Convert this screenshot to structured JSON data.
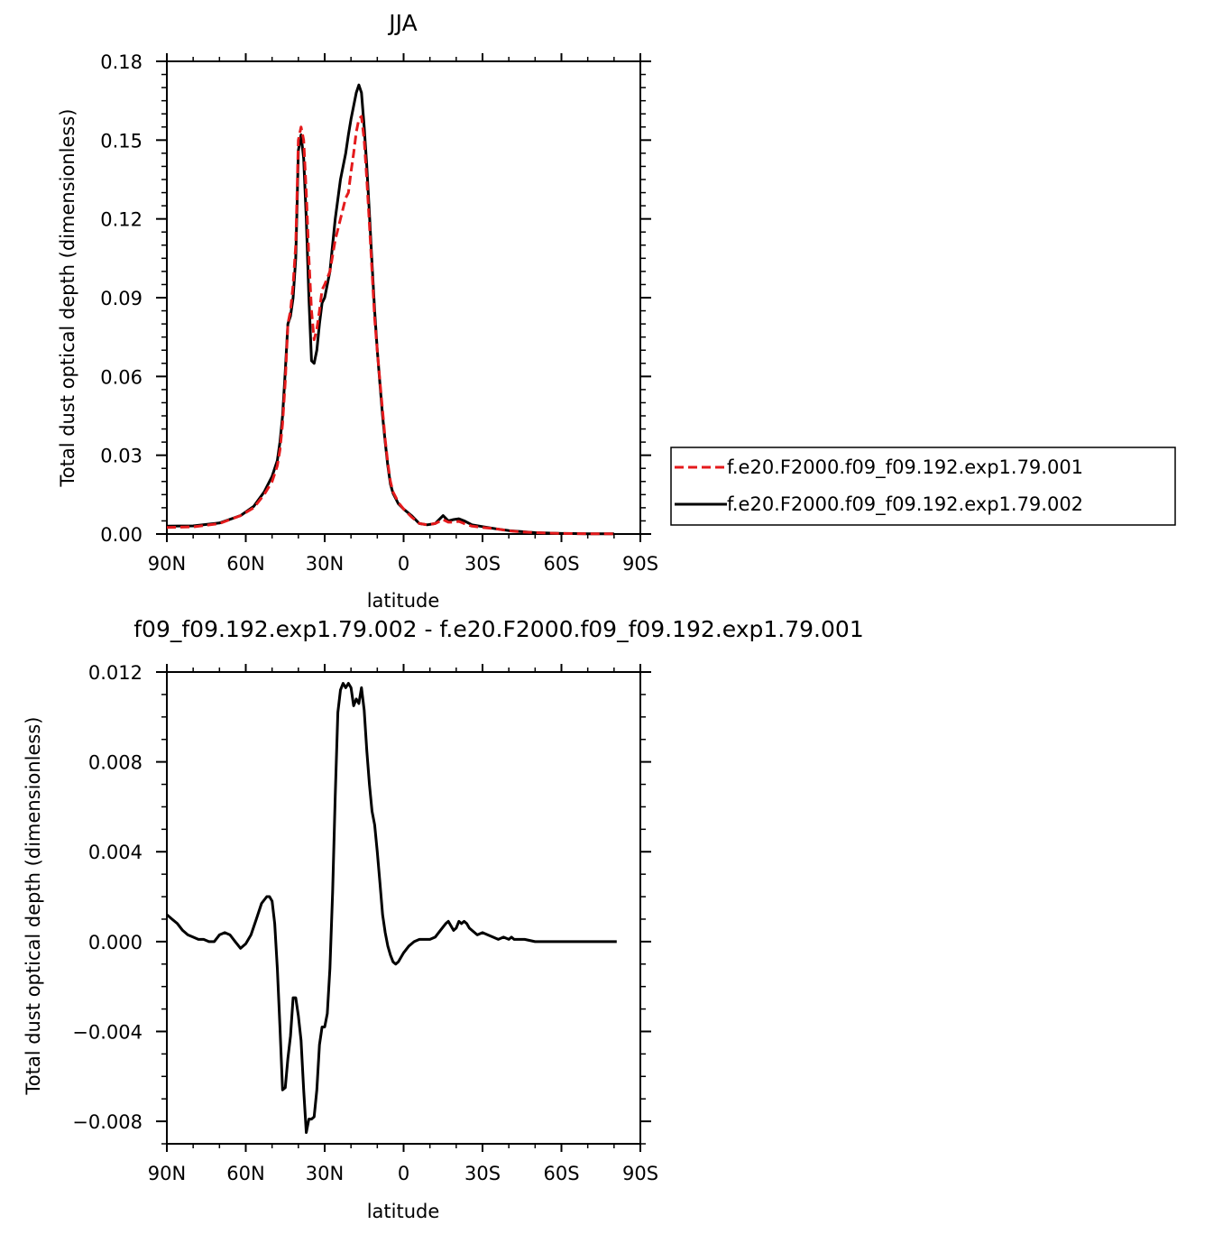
{
  "chart_data": [
    {
      "type": "line",
      "title": "JJA",
      "xlabel": "latitude",
      "ylabel": "Total dust optical depth (dimensionless)",
      "xlim": [
        90,
        -90
      ],
      "ylim": [
        0,
        0.18
      ],
      "x_ticks": [
        {
          "value": 90,
          "label": "90N"
        },
        {
          "value": 60,
          "label": "60N"
        },
        {
          "value": 30,
          "label": "30N"
        },
        {
          "value": 0,
          "label": "0"
        },
        {
          "value": -30,
          "label": "30S"
        },
        {
          "value": -60,
          "label": "60S"
        },
        {
          "value": -90,
          "label": "90S"
        }
      ],
      "y_ticks": [
        {
          "value": 0.0,
          "label": "0.00"
        },
        {
          "value": 0.03,
          "label": "0.03"
        },
        {
          "value": 0.06,
          "label": "0.06"
        },
        {
          "value": 0.09,
          "label": "0.09"
        },
        {
          "value": 0.12,
          "label": "0.12"
        },
        {
          "value": 0.15,
          "label": "0.15"
        },
        {
          "value": 0.18,
          "label": "0.18"
        }
      ],
      "legend_position": "right",
      "series": [
        {
          "name": "f.e20.F2000.f09_f09.192.exp1.79.001",
          "color": "#e41a1c",
          "dash": "dashed",
          "x": [
            90,
            80,
            70,
            62,
            57,
            53,
            50,
            48,
            47,
            46,
            45,
            44,
            43,
            42,
            41,
            40.5,
            40,
            39,
            38,
            37,
            36,
            35,
            34,
            33,
            32,
            31,
            30,
            28,
            26,
            24,
            22,
            21,
            20,
            19,
            18,
            17,
            16,
            15,
            14,
            13,
            12,
            11,
            10,
            9,
            8,
            7,
            6,
            5,
            4,
            3,
            2,
            0,
            -3,
            -6,
            -9,
            -12,
            -15,
            -17,
            -19,
            -21,
            -23,
            -26,
            -30,
            -35,
            -40,
            -45,
            -50,
            -60,
            -70,
            -80
          ],
          "y": [
            0.0025,
            0.0027,
            0.004,
            0.007,
            0.01,
            0.015,
            0.02,
            0.026,
            0.032,
            0.042,
            0.058,
            0.08,
            0.085,
            0.095,
            0.11,
            0.13,
            0.15,
            0.155,
            0.15,
            0.13,
            0.105,
            0.085,
            0.074,
            0.078,
            0.085,
            0.093,
            0.095,
            0.1,
            0.112,
            0.12,
            0.128,
            0.13,
            0.138,
            0.145,
            0.153,
            0.158,
            0.159,
            0.15,
            0.135,
            0.118,
            0.1,
            0.082,
            0.07,
            0.058,
            0.047,
            0.036,
            0.027,
            0.02,
            0.016,
            0.014,
            0.012,
            0.0095,
            0.0065,
            0.004,
            0.0035,
            0.004,
            0.0055,
            0.0045,
            0.0045,
            0.0048,
            0.004,
            0.003,
            0.0025,
            0.002,
            0.0012,
            0.0008,
            0.0005,
            0.0002,
            0.0001,
            0.0001
          ]
        },
        {
          "name": "f.e20.F2000.f09_f09.192.exp1.79.002",
          "color": "#000000",
          "dash": "solid",
          "x": [
            90,
            80,
            70,
            62,
            57,
            53,
            50,
            48,
            47,
            46,
            45,
            44,
            43,
            42,
            41,
            40.5,
            40,
            39,
            38,
            37,
            36,
            35,
            34,
            33,
            32,
            31,
            30,
            28,
            26,
            24,
            22,
            21,
            20,
            19,
            18,
            17,
            16,
            15,
            14,
            13,
            12,
            11,
            10,
            9,
            8,
            7,
            6,
            5,
            4,
            3,
            2,
            0,
            -3,
            -6,
            -9,
            -12,
            -15,
            -17,
            -19,
            -21,
            -23,
            -26,
            -30,
            -35,
            -40,
            -45,
            -50,
            -60,
            -70,
            -80
          ],
          "y": [
            0.003,
            0.0031,
            0.0042,
            0.007,
            0.0105,
            0.016,
            0.022,
            0.028,
            0.035,
            0.045,
            0.062,
            0.08,
            0.083,
            0.09,
            0.105,
            0.125,
            0.146,
            0.152,
            0.143,
            0.12,
            0.09,
            0.066,
            0.065,
            0.07,
            0.08,
            0.088,
            0.09,
            0.1,
            0.12,
            0.135,
            0.145,
            0.152,
            0.158,
            0.163,
            0.168,
            0.171,
            0.168,
            0.155,
            0.14,
            0.122,
            0.103,
            0.085,
            0.07,
            0.057,
            0.045,
            0.035,
            0.026,
            0.019,
            0.0155,
            0.0135,
            0.0115,
            0.0095,
            0.007,
            0.004,
            0.0035,
            0.004,
            0.007,
            0.005,
            0.0055,
            0.0058,
            0.005,
            0.0035,
            0.0028,
            0.002,
            0.0013,
            0.0009,
            0.0005,
            0.0002,
            0.0001,
            0.0001
          ]
        }
      ]
    },
    {
      "type": "line",
      "title": "f09_f09.192.exp1.79.002 - f.e20.F2000.f09_f09.192.exp1.79.001",
      "xlabel": "latitude",
      "ylabel": "Total dust optical depth (dimensionless)",
      "xlim": [
        90,
        -90
      ],
      "ylim": [
        -0.009,
        0.012
      ],
      "x_ticks": [
        {
          "value": 90,
          "label": "90N"
        },
        {
          "value": 60,
          "label": "60N"
        },
        {
          "value": 30,
          "label": "30N"
        },
        {
          "value": 0,
          "label": "0"
        },
        {
          "value": -30,
          "label": "30S"
        },
        {
          "value": -60,
          "label": "60S"
        },
        {
          "value": -90,
          "label": "90S"
        }
      ],
      "y_ticks": [
        {
          "value": -0.008,
          "label": "−0.008"
        },
        {
          "value": -0.004,
          "label": "−0.004"
        },
        {
          "value": 0.0,
          "label": "0.000"
        },
        {
          "value": 0.004,
          "label": "0.004"
        },
        {
          "value": 0.008,
          "label": "0.008"
        },
        {
          "value": 0.012,
          "label": "0.012"
        }
      ],
      "series": [
        {
          "color": "#000000",
          "dash": "solid",
          "x": [
            90,
            88,
            86,
            84,
            82,
            80,
            78,
            76,
            74,
            72,
            70,
            68,
            66,
            64,
            62,
            60,
            58,
            56,
            54,
            52,
            51,
            50,
            49,
            48,
            47,
            46,
            45,
            44,
            43,
            42,
            41,
            40,
            39,
            38,
            37,
            36,
            35,
            34,
            33,
            32,
            31,
            30,
            29,
            28,
            27,
            26,
            25,
            24,
            23,
            22,
            21,
            20,
            19,
            18,
            17,
            16,
            15,
            14,
            13,
            12,
            11,
            10,
            9,
            8,
            7,
            6,
            5,
            4,
            3,
            2,
            0,
            -2,
            -4,
            -6,
            -8,
            -10,
            -12,
            -14,
            -16,
            -17,
            -18,
            -19,
            -20,
            -21,
            -22,
            -23,
            -24,
            -25,
            -26,
            -28,
            -30,
            -32,
            -34,
            -36,
            -38,
            -40,
            -41,
            -42,
            -44,
            -46,
            -50,
            -55,
            -60,
            -70,
            -81
          ],
          "y": [
            0.0012,
            0.001,
            0.0008,
            0.0005,
            0.0003,
            0.0002,
            0.0001,
            0.0001,
            0.0,
            0.0,
            0.0003,
            0.0004,
            0.0003,
            0.0,
            -0.0003,
            -0.0001,
            0.0003,
            0.001,
            0.0017,
            0.002,
            0.002,
            0.0018,
            0.0008,
            -0.0012,
            -0.0038,
            -0.0066,
            -0.0065,
            -0.0052,
            -0.0042,
            -0.0025,
            -0.0025,
            -0.0033,
            -0.0044,
            -0.0066,
            -0.0085,
            -0.0079,
            -0.0079,
            -0.0078,
            -0.0066,
            -0.0046,
            -0.0038,
            -0.0038,
            -0.0032,
            -0.0012,
            0.0022,
            0.0065,
            0.0102,
            0.0112,
            0.0115,
            0.0113,
            0.0115,
            0.0113,
            0.0105,
            0.0108,
            0.0106,
            0.0113,
            0.0103,
            0.0085,
            0.007,
            0.0058,
            0.0052,
            0.004,
            0.0026,
            0.0012,
            0.0004,
            -0.0002,
            -0.0006,
            -0.0009,
            -0.001,
            -0.0009,
            -0.0005,
            -0.0002,
            0.0,
            0.0001,
            0.0001,
            0.0001,
            0.0002,
            0.0005,
            0.0008,
            0.0009,
            0.0007,
            0.0005,
            0.0006,
            0.0009,
            0.0008,
            0.0009,
            0.0008,
            0.0006,
            0.0005,
            0.0003,
            0.0004,
            0.0003,
            0.0002,
            0.0001,
            0.0002,
            0.0001,
            0.0002,
            0.0001,
            0.0001,
            0.0001,
            0.0,
            0.0,
            0.0,
            0.0,
            0.0
          ]
        }
      ]
    }
  ]
}
